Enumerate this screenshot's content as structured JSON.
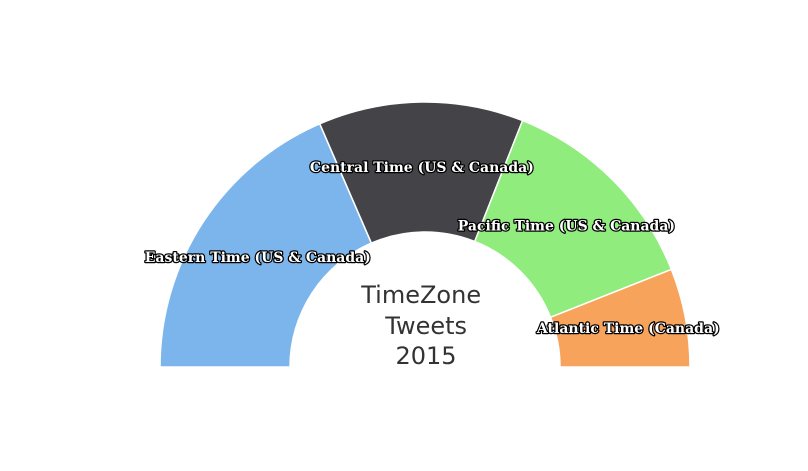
{
  "chart_data": {
    "type": "pie",
    "variant": "semi-donut",
    "title": "TimeZone Tweets 2015",
    "title_lines": [
      "TimeZone",
      "Tweets",
      "2015"
    ],
    "legend": "none",
    "series": [
      {
        "categories": [
          "Eastern Time (US & Canada)",
          "Central Time (US & Canada)",
          "Pacific Time (US & Canada)",
          "Atlantic Time (Canada)"
        ],
        "values": [
          37,
          25,
          26,
          12
        ],
        "colors": [
          "#7cb5ec",
          "#434348",
          "#90ed7d",
          "#f7a35c"
        ]
      }
    ]
  }
}
